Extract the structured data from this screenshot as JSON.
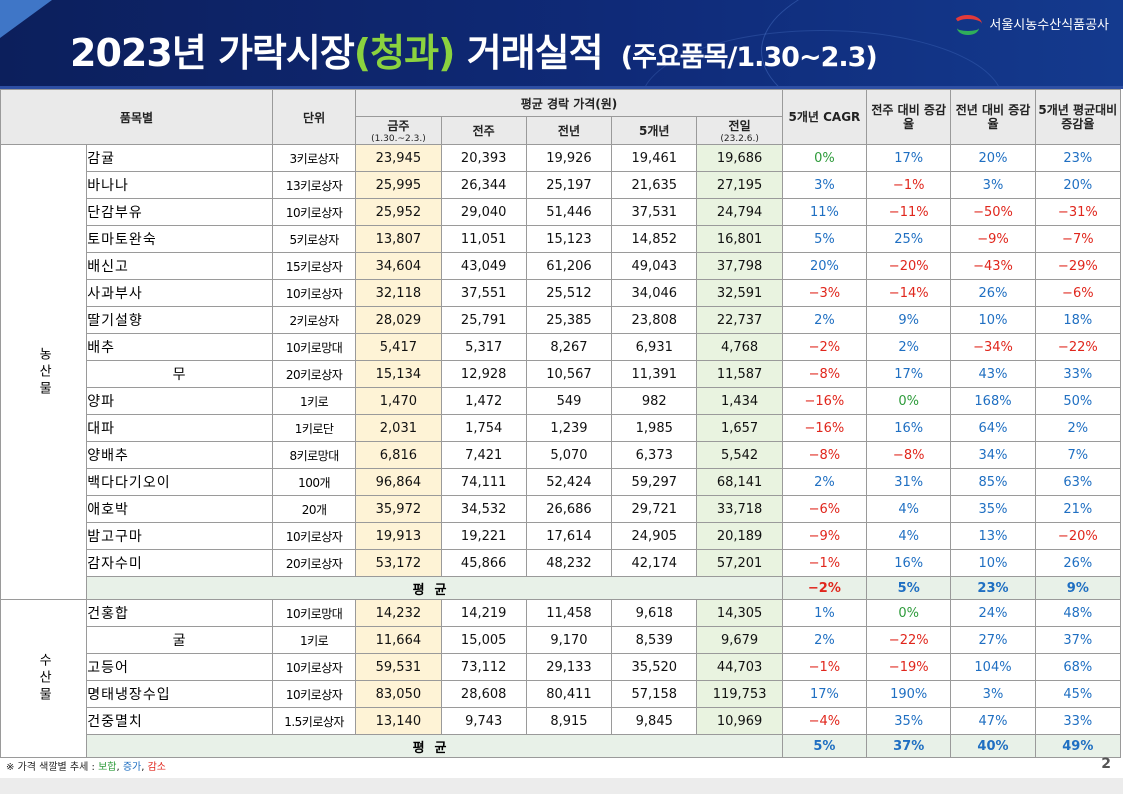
{
  "header": {
    "title_main": "2023년 가락시장",
    "title_highlight": "(청과)",
    "title_tail": "거래실적",
    "subtitle": "(주요품목/1.30~2.3)",
    "org_name": "서울시농수산식품공사",
    "logo_icon": "agency-logo-icon"
  },
  "table": {
    "headers": {
      "item": "품목별",
      "unit": "단위",
      "avg_price": "평균 경락 가격(원)",
      "this_week": "금주",
      "this_week_sub": "(1.30.~2.3.)",
      "last_week": "전주",
      "last_year": "전년",
      "five_year": "5개년",
      "prev_day": "전일",
      "prev_day_sub": "(23.2.6.)",
      "cagr": "5개년 CAGR",
      "wow": "전주 대비 증감율",
      "yoy": "전년 대비 증감율",
      "vs5y": "5개년 평균대비 증감율"
    },
    "sections": [
      {
        "category": "농산물",
        "rows": [
          {
            "item": "감귤",
            "unit": "3키로상자",
            "this_week": "23,945",
            "last_week": "20,393",
            "last_year": "19,926",
            "five_year": "19,461",
            "prev_day": "19,686",
            "cagr": "0%",
            "wow": "17%",
            "yoy": "20%",
            "vs5y": "23%"
          },
          {
            "item": "바나나",
            "unit": "13키로상자",
            "this_week": "25,995",
            "last_week": "26,344",
            "last_year": "25,197",
            "five_year": "21,635",
            "prev_day": "27,195",
            "cagr": "3%",
            "wow": "−1%",
            "yoy": "3%",
            "vs5y": "20%"
          },
          {
            "item": "단감부유",
            "unit": "10키로상자",
            "this_week": "25,952",
            "last_week": "29,040",
            "last_year": "51,446",
            "five_year": "37,531",
            "prev_day": "24,794",
            "cagr": "11%",
            "wow": "−11%",
            "yoy": "−50%",
            "vs5y": "−31%"
          },
          {
            "item": "토마토완숙",
            "unit": "5키로상자",
            "this_week": "13,807",
            "last_week": "11,051",
            "last_year": "15,123",
            "five_year": "14,852",
            "prev_day": "16,801",
            "cagr": "5%",
            "wow": "25%",
            "yoy": "−9%",
            "vs5y": "−7%"
          },
          {
            "item": "배신고",
            "unit": "15키로상자",
            "this_week": "34,604",
            "last_week": "43,049",
            "last_year": "61,206",
            "five_year": "49,043",
            "prev_day": "37,798",
            "cagr": "20%",
            "wow": "−20%",
            "yoy": "−43%",
            "vs5y": "−29%"
          },
          {
            "item": "사과부사",
            "unit": "10키로상자",
            "this_week": "32,118",
            "last_week": "37,551",
            "last_year": "25,512",
            "five_year": "34,046",
            "prev_day": "32,591",
            "cagr": "−3%",
            "wow": "−14%",
            "yoy": "26%",
            "vs5y": "−6%"
          },
          {
            "item": "딸기설향",
            "unit": "2키로상자",
            "this_week": "28,029",
            "last_week": "25,791",
            "last_year": "25,385",
            "five_year": "23,808",
            "prev_day": "22,737",
            "cagr": "2%",
            "wow": "9%",
            "yoy": "10%",
            "vs5y": "18%"
          },
          {
            "item": "배추",
            "unit": "10키로망대",
            "this_week": "5,417",
            "last_week": "5,317",
            "last_year": "8,267",
            "five_year": "6,931",
            "prev_day": "4,768",
            "cagr": "−2%",
            "wow": "2%",
            "yoy": "−34%",
            "vs5y": "−22%"
          },
          {
            "item": "무",
            "unit": "20키로상자",
            "this_week": "15,134",
            "last_week": "12,928",
            "last_year": "10,567",
            "five_year": "11,391",
            "prev_day": "11,587",
            "cagr": "−8%",
            "wow": "17%",
            "yoy": "43%",
            "vs5y": "33%"
          },
          {
            "item": "양파",
            "unit": "1키로",
            "this_week": "1,470",
            "last_week": "1,472",
            "last_year": "549",
            "five_year": "982",
            "prev_day": "1,434",
            "cagr": "−16%",
            "wow": "0%",
            "yoy": "168%",
            "vs5y": "50%"
          },
          {
            "item": "대파",
            "unit": "1키로단",
            "this_week": "2,031",
            "last_week": "1,754",
            "last_year": "1,239",
            "five_year": "1,985",
            "prev_day": "1,657",
            "cagr": "−16%",
            "wow": "16%",
            "yoy": "64%",
            "vs5y": "2%"
          },
          {
            "item": "양배추",
            "unit": "8키로망대",
            "this_week": "6,816",
            "last_week": "7,421",
            "last_year": "5,070",
            "five_year": "6,373",
            "prev_day": "5,542",
            "cagr": "−8%",
            "wow": "−8%",
            "yoy": "34%",
            "vs5y": "7%"
          },
          {
            "item": "백다다기오이",
            "unit": "100개",
            "this_week": "96,864",
            "last_week": "74,111",
            "last_year": "52,424",
            "five_year": "59,297",
            "prev_day": "68,141",
            "cagr": "2%",
            "wow": "31%",
            "yoy": "85%",
            "vs5y": "63%"
          },
          {
            "item": "애호박",
            "unit": "20개",
            "this_week": "35,972",
            "last_week": "34,532",
            "last_year": "26,686",
            "five_year": "29,721",
            "prev_day": "33,718",
            "cagr": "−6%",
            "wow": "4%",
            "yoy": "35%",
            "vs5y": "21%"
          },
          {
            "item": "밤고구마",
            "unit": "10키로상자",
            "this_week": "19,913",
            "last_week": "19,221",
            "last_year": "17,614",
            "five_year": "24,905",
            "prev_day": "20,189",
            "cagr": "−9%",
            "wow": "4%",
            "yoy": "13%",
            "vs5y": "−20%"
          },
          {
            "item": "감자수미",
            "unit": "20키로상자",
            "this_week": "53,172",
            "last_week": "45,866",
            "last_year": "48,232",
            "five_year": "42,174",
            "prev_day": "57,201",
            "cagr": "−1%",
            "wow": "16%",
            "yoy": "10%",
            "vs5y": "26%"
          }
        ],
        "average": {
          "label": "평균",
          "cagr": "−2%",
          "wow": "5%",
          "yoy": "23%",
          "vs5y": "9%"
        }
      },
      {
        "category": "수산물",
        "rows": [
          {
            "item": "건홍합",
            "unit": "10키로망대",
            "this_week": "14,232",
            "last_week": "14,219",
            "last_year": "11,458",
            "five_year": "9,618",
            "prev_day": "14,305",
            "cagr": "1%",
            "wow": "0%",
            "yoy": "24%",
            "vs5y": "48%"
          },
          {
            "item": "굴",
            "unit": "1키로",
            "this_week": "11,664",
            "last_week": "15,005",
            "last_year": "9,170",
            "five_year": "8,539",
            "prev_day": "9,679",
            "cagr": "2%",
            "wow": "−22%",
            "yoy": "27%",
            "vs5y": "37%"
          },
          {
            "item": "고등어",
            "unit": "10키로상자",
            "this_week": "59,531",
            "last_week": "73,112",
            "last_year": "29,133",
            "five_year": "35,520",
            "prev_day": "44,703",
            "cagr": "−1%",
            "wow": "−19%",
            "yoy": "104%",
            "vs5y": "68%"
          },
          {
            "item": "명태냉장수입",
            "unit": "10키로상자",
            "this_week": "83,050",
            "last_week": "28,608",
            "last_year": "80,411",
            "five_year": "57,158",
            "prev_day": "119,753",
            "cagr": "17%",
            "wow": "190%",
            "yoy": "3%",
            "vs5y": "45%"
          },
          {
            "item": "건중멸치",
            "unit": "1.5키로상자",
            "this_week": "13,140",
            "last_week": "9,743",
            "last_year": "8,915",
            "five_year": "9,845",
            "prev_day": "10,969",
            "cagr": "−4%",
            "wow": "35%",
            "yoy": "47%",
            "vs5y": "33%"
          }
        ],
        "average": {
          "label": "평균",
          "cagr": "5%",
          "wow": "37%",
          "yoy": "40%",
          "vs5y": "49%"
        }
      }
    ]
  },
  "note": {
    "prefix": "※ 가격 색깔별 추세 :",
    "flat": "보합",
    "up": "증가",
    "down": "감소",
    "sep": ", ",
    "colors": {
      "flat": "#2e9b3b",
      "up": "#1f6fc2",
      "down": "#e0261c"
    }
  },
  "page_number": "2"
}
